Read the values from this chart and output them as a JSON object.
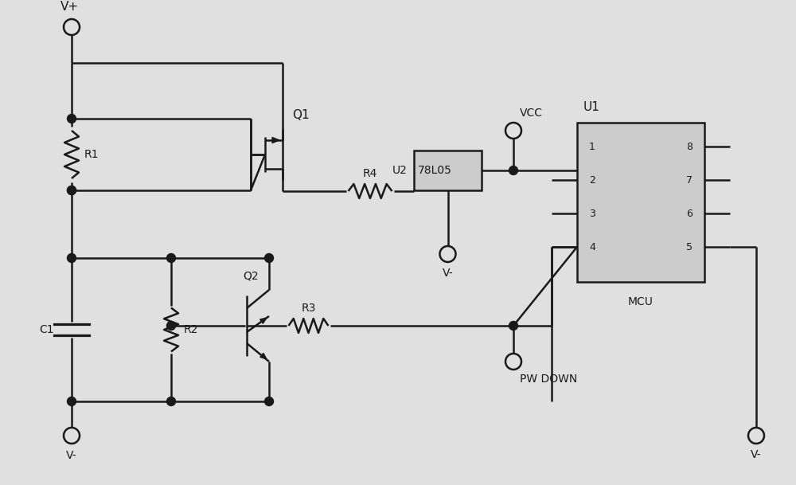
{
  "bg_color": "#e0e0e0",
  "line_color": "#1a1a1a",
  "lw": 1.8,
  "fig_width": 10.0,
  "fig_height": 6.09,
  "labels": {
    "Vplus": "V+",
    "Vminus_bot": "V-",
    "Vminus_u2": "V-",
    "Vminus_right": "V-",
    "VCC": "VCC",
    "Q1": "Q1",
    "Q2": "Q2",
    "R1": "R1",
    "R2": "R2",
    "R3": "R3",
    "R4": "R4",
    "C1": "C1",
    "U1": "U1",
    "U2": "U2",
    "U2_name": "78L05",
    "MCU": "MCU",
    "PWDOWN": "PW DOWN"
  }
}
